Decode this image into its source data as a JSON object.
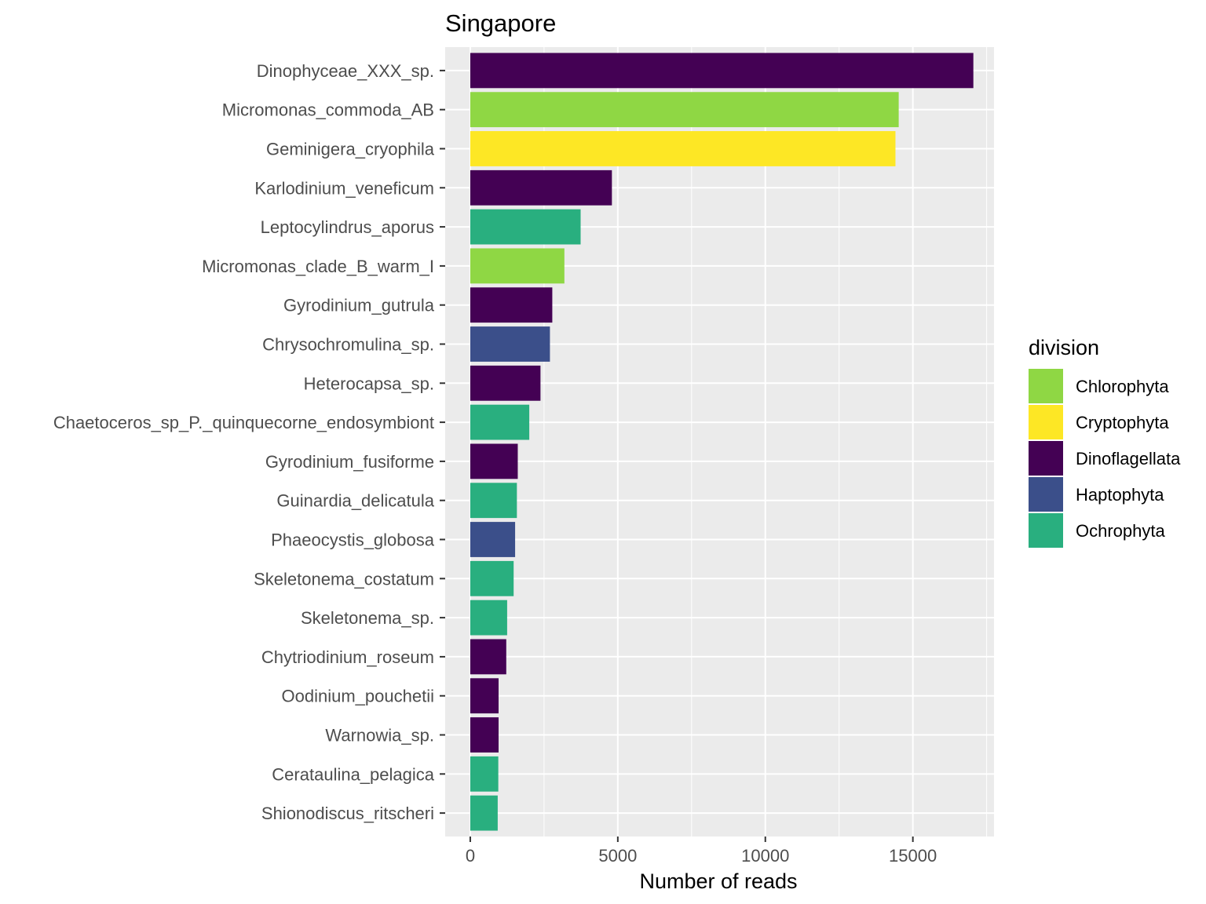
{
  "chart_data": {
    "type": "bar",
    "orientation": "horizontal",
    "title": "Singapore",
    "xlabel": "Number of reads",
    "ylabel": "",
    "xlim": [
      -850,
      17750
    ],
    "xticks": [
      0,
      5000,
      10000,
      15000
    ],
    "grid": true,
    "legend": {
      "title": "division",
      "placement": "right",
      "entries": [
        {
          "name": "Chlorophyta",
          "color": "#8fd744"
        },
        {
          "name": "Cryptophyta",
          "color": "#fde725"
        },
        {
          "name": "Dinoflagellata",
          "color": "#440154"
        },
        {
          "name": "Haptophyta",
          "color": "#3b4f8a"
        },
        {
          "name": "Ochrophyta",
          "color": "#29af7f"
        }
      ]
    },
    "bars": [
      {
        "label": "Dinophyceae_XXX_sp.",
        "value": 17050,
        "division": "Dinoflagellata"
      },
      {
        "label": "Micromonas_commoda_AB",
        "value": 14520,
        "division": "Chlorophyta"
      },
      {
        "label": "Geminigera_cryophila",
        "value": 14410,
        "division": "Cryptophyta"
      },
      {
        "label": "Karlodinium_veneficum",
        "value": 4800,
        "division": "Dinoflagellata"
      },
      {
        "label": "Leptocylindrus_aporus",
        "value": 3740,
        "division": "Ochrophyta"
      },
      {
        "label": "Micromonas_clade_B_warm_I",
        "value": 3190,
        "division": "Chlorophyta"
      },
      {
        "label": "Gyrodinium_gutrula",
        "value": 2780,
        "division": "Dinoflagellata"
      },
      {
        "label": "Chrysochromulina_sp.",
        "value": 2700,
        "division": "Haptophyta"
      },
      {
        "label": "Heterocapsa_sp.",
        "value": 2380,
        "division": "Dinoflagellata"
      },
      {
        "label": "Chaetoceros_sp_P._quinquecorne_endosymbiont",
        "value": 2000,
        "division": "Ochrophyta"
      },
      {
        "label": "Gyrodinium_fusiforme",
        "value": 1610,
        "division": "Dinoflagellata"
      },
      {
        "label": "Guinardia_delicatula",
        "value": 1580,
        "division": "Ochrophyta"
      },
      {
        "label": "Phaeocystis_globosa",
        "value": 1520,
        "division": "Haptophyta"
      },
      {
        "label": "Skeletonema_costatum",
        "value": 1470,
        "division": "Ochrophyta"
      },
      {
        "label": "Skeletonema_sp.",
        "value": 1250,
        "division": "Ochrophyta"
      },
      {
        "label": "Chytriodinium_roseum",
        "value": 1220,
        "division": "Dinoflagellata"
      },
      {
        "label": "Oodinium_pouchetii",
        "value": 960,
        "division": "Dinoflagellata"
      },
      {
        "label": "Warnowia_sp.",
        "value": 960,
        "division": "Dinoflagellata"
      },
      {
        "label": "Cerataulina_pelagica",
        "value": 950,
        "division": "Ochrophyta"
      },
      {
        "label": "Shionodiscus_ritscheri",
        "value": 930,
        "division": "Ochrophyta"
      }
    ]
  }
}
